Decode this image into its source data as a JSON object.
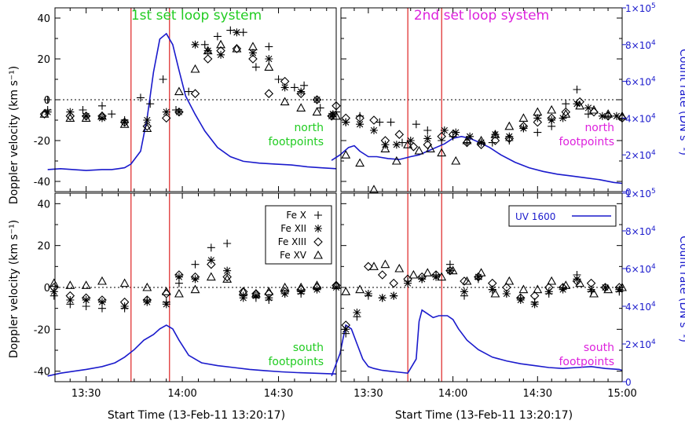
{
  "colors": {
    "axis": "#000000",
    "marker": "#000000",
    "uv_curve": "#1a1acc",
    "red_line": "#dd2222",
    "title_left": "#22cc22",
    "title_right": "#dd22dd"
  },
  "labels": {
    "ylabel_left": "Doppler velocity (km s⁻¹)",
    "ylabel_right": "Count rate (DN s⁻¹)",
    "xlabel": "Start Time (13-Feb-11 13:20:17)",
    "title_col1": "1st set loop system",
    "title_col2": "2nd set loop system",
    "north_1": "north",
    "north_2": "footpoints",
    "south_1": "south",
    "south_2": "footpoints"
  },
  "legend": {
    "fe10": "Fe X",
    "fe12": "Fe XII",
    "fe13": "Fe XIII",
    "fe15": "Fe XV",
    "uv": "UV 1600"
  },
  "chart_data": [
    {
      "type": "scatter",
      "panel": "top-left",
      "title": "1st set loop system",
      "label": "north footpoints",
      "xlim": [
        "13:20:17",
        "14:48"
      ],
      "ylim": [
        -45,
        45
      ],
      "ylim_right": [
        0,
        100000
      ],
      "red_lines": [
        "13:44",
        "13:56"
      ],
      "series": [
        {
          "name": "Fe X",
          "marker": "plus",
          "x": [
            13.3,
            13.3,
            13.483,
            13.583,
            13.633,
            13.7,
            13.783,
            13.833,
            13.9,
            13.967,
            14.033,
            14.117,
            14.183,
            14.25,
            14.317,
            14.383,
            14.45,
            14.5,
            14.583,
            14.633,
            14.717,
            14.8
          ],
          "y": [
            -5,
            0,
            -5,
            -3,
            -7,
            -10,
            1,
            -2,
            10,
            -5,
            4,
            27,
            31,
            34,
            33,
            16,
            26,
            10,
            6,
            7,
            -4,
            -6
          ]
        },
        {
          "name": "Fe XII",
          "marker": "asterisk",
          "x": [
            13.3,
            13.417,
            13.5,
            13.583,
            13.7,
            13.817,
            13.917,
            13.983,
            14.067,
            14.133,
            14.2,
            14.283,
            14.367,
            14.45,
            14.533,
            14.617,
            14.7,
            14.783
          ],
          "y": [
            -6,
            -6,
            -8,
            -9,
            -11,
            -10,
            -6,
            -6,
            27,
            24,
            22,
            33,
            23,
            20,
            6,
            4,
            0,
            -7
          ]
        },
        {
          "name": "Fe XIII",
          "marker": "diamond",
          "x": [
            13.283,
            13.417,
            13.5,
            13.583,
            13.7,
            13.817,
            13.917,
            13.983,
            14.067,
            14.133,
            14.2,
            14.283,
            14.367,
            14.45,
            14.533,
            14.617,
            14.7,
            14.8
          ],
          "y": [
            -7,
            -8,
            -8,
            -8,
            -11,
            -13,
            -9,
            -6,
            3,
            20,
            24,
            25,
            20,
            3,
            9,
            3,
            0,
            -3
          ]
        },
        {
          "name": "Fe XV",
          "marker": "triangle",
          "x": [
            13.283,
            13.417,
            13.5,
            13.583,
            13.7,
            13.817,
            13.983,
            14.067,
            14.133,
            14.2,
            14.283,
            14.367,
            14.45,
            14.533,
            14.617,
            14.7,
            14.8
          ],
          "y": [
            -7,
            -9,
            -9,
            -8,
            -12,
            -14,
            4,
            15,
            24,
            27,
            25,
            26,
            16,
            -1,
            -4,
            -6,
            -8
          ]
        }
      ],
      "uv": {
        "x": [
          13.3,
          13.367,
          13.433,
          13.5,
          13.583,
          13.633,
          13.667,
          13.7,
          13.733,
          13.783,
          13.817,
          13.85,
          13.883,
          13.917,
          13.95,
          13.983,
          14.017,
          14.067,
          14.117,
          14.183,
          14.25,
          14.317,
          14.4,
          14.483,
          14.567,
          14.65,
          14.717,
          14.8
        ],
        "y": [
          12000,
          12500,
          12000,
          11500,
          12000,
          12000,
          12500,
          13000,
          15000,
          22000,
          40000,
          65000,
          83000,
          86000,
          80000,
          66000,
          52000,
          42000,
          33000,
          24000,
          19000,
          16500,
          15500,
          15000,
          14500,
          13500,
          13000,
          12500
        ]
      }
    },
    {
      "type": "scatter",
      "panel": "top-right",
      "title": "2nd set loop system",
      "label": "north footpoints",
      "xlim": [
        "13:20:17",
        "15:00"
      ],
      "ylim": [
        -45,
        45
      ],
      "ylim_right": [
        0,
        100000
      ],
      "red_lines": [
        "13:44",
        "13:56"
      ],
      "series": [
        {
          "name": "Fe X",
          "marker": "plus",
          "x": [
            13.367,
            13.45,
            13.567,
            13.633,
            13.7,
            13.783,
            13.85,
            13.933,
            14.0,
            14.083,
            14.233,
            14.333,
            14.417,
            14.5,
            14.583,
            14.667,
            14.733,
            14.8,
            14.917,
            15.0
          ],
          "y": [
            -11,
            -8,
            -11,
            -11,
            -21,
            -12,
            -15,
            -20,
            -18,
            -21,
            -21,
            -20,
            -14,
            -16,
            -13,
            -2,
            5,
            -7,
            -8,
            -9
          ]
        },
        {
          "name": "Fe XII",
          "marker": "asterisk",
          "x": [
            13.283,
            13.367,
            13.45,
            13.533,
            13.6,
            13.667,
            13.75,
            13.85,
            13.95,
            14.017,
            14.1,
            14.167,
            14.25,
            14.333,
            14.417,
            14.5,
            14.583,
            14.65,
            14.733,
            14.8,
            14.883,
            14.967
          ],
          "y": [
            -8,
            -11,
            -12,
            -15,
            -22,
            -22,
            -20,
            -19,
            -15,
            -16,
            -18,
            -21,
            -17,
            -18,
            -14,
            -9,
            -10,
            -9,
            -2,
            -4,
            -8,
            -8
          ]
        },
        {
          "name": "Fe XIII",
          "marker": "diamond",
          "x": [
            13.283,
            13.367,
            13.45,
            13.533,
            13.6,
            13.683,
            13.767,
            13.85,
            13.933,
            14.0,
            14.083,
            14.167,
            14.25,
            14.333,
            14.417,
            14.5,
            14.583,
            14.667,
            14.75,
            14.833,
            14.917,
            15.0
          ],
          "y": [
            -8,
            -9,
            -9,
            -10,
            -20,
            -17,
            -23,
            -22,
            -18,
            -17,
            -21,
            -22,
            -20,
            -19,
            -13,
            -11,
            -9,
            -6,
            -1,
            -6,
            -8,
            -9
          ]
        },
        {
          "name": "Fe XV",
          "marker": "triangle",
          "x": [
            13.367,
            13.45,
            13.533,
            13.6,
            13.667,
            13.733,
            13.8,
            13.867,
            13.933,
            14.017,
            14.083,
            14.167,
            14.25,
            14.333,
            14.417,
            14.5,
            14.583,
            14.667,
            14.75,
            14.833,
            14.917,
            15.0
          ],
          "y": [
            -27,
            -31,
            -44,
            -24,
            -30,
            -22,
            -25,
            -24,
            -26,
            -30,
            -20,
            -20,
            -17,
            -13,
            -9,
            -6,
            -5,
            -7,
            -3,
            -5,
            -7,
            -8
          ]
        }
      ],
      "uv": {
        "x": [
          13.283,
          13.333,
          13.383,
          13.417,
          13.45,
          13.5,
          13.55,
          13.617,
          13.683,
          13.75,
          13.8,
          13.85,
          13.9,
          13.95,
          14.0,
          14.05,
          14.1,
          14.15,
          14.217,
          14.283,
          14.367,
          14.45,
          14.533,
          14.617,
          14.7,
          14.783,
          14.867,
          14.95,
          15.0
        ],
        "y": [
          17000,
          20000,
          24000,
          25000,
          22000,
          19000,
          19000,
          18000,
          17500,
          19000,
          20000,
          22000,
          24000,
          26000,
          29000,
          30000,
          29000,
          27000,
          24000,
          20000,
          16000,
          13000,
          11000,
          9500,
          8500,
          7500,
          6500,
          5000,
          4500
        ]
      }
    },
    {
      "type": "scatter",
      "panel": "bottom-left",
      "label": "south footpoints",
      "xlim": [
        "13:20:17",
        "14:48"
      ],
      "ylim": [
        -45,
        45
      ],
      "ylim_right": [
        0,
        100000
      ],
      "red_lines": [
        "13:44",
        "13:56"
      ],
      "series": [
        {
          "name": "Fe X",
          "marker": "plus",
          "x": [
            13.333,
            13.417,
            13.5,
            13.583,
            13.7,
            13.817,
            13.917,
            13.983,
            14.067,
            14.15,
            14.233,
            14.317,
            14.383,
            14.45,
            14.533,
            14.617,
            14.7,
            14.8
          ],
          "y": [
            -4,
            -8,
            -9,
            -10,
            -10,
            -6,
            -7,
            2,
            11,
            19,
            21,
            -4,
            -5,
            -6,
            -3,
            -3,
            -1,
            0
          ]
        },
        {
          "name": "Fe XII",
          "marker": "asterisk",
          "x": [
            13.333,
            13.417,
            13.5,
            13.583,
            13.7,
            13.817,
            13.917,
            13.983,
            14.067,
            14.15,
            14.233,
            14.317,
            14.383,
            14.45,
            14.533,
            14.617,
            14.7,
            14.8
          ],
          "y": [
            -2,
            -6,
            -6,
            -7,
            -9,
            -7,
            -8,
            5,
            4,
            13,
            8,
            -5,
            -4,
            -5,
            -3,
            -2,
            -1,
            0
          ]
        },
        {
          "name": "Fe XIII",
          "marker": "diamond",
          "x": [
            13.333,
            13.417,
            13.5,
            13.583,
            13.7,
            13.817,
            13.917,
            13.983,
            14.067,
            14.15,
            14.233,
            14.317,
            14.383,
            14.45,
            14.533,
            14.617,
            14.7,
            14.8
          ],
          "y": [
            0,
            -4,
            -5,
            -6,
            -7,
            -6,
            -3,
            6,
            5,
            11,
            5,
            -2,
            -3,
            -3,
            -2,
            -1,
            0,
            1
          ]
        },
        {
          "name": "Fe XV",
          "marker": "triangle",
          "x": [
            13.333,
            13.417,
            13.5,
            13.583,
            13.7,
            13.817,
            13.917,
            13.983,
            14.067,
            14.15,
            14.233,
            14.317,
            14.383,
            14.45,
            14.533,
            14.617,
            14.7,
            14.8
          ],
          "y": [
            2,
            1,
            1,
            3,
            2,
            0,
            -2,
            -3,
            -1,
            5,
            4,
            -2,
            -3,
            -2,
            0,
            0,
            1,
            1
          ]
        }
      ],
      "uv": {
        "x": [
          13.3,
          13.367,
          13.433,
          13.5,
          13.583,
          13.65,
          13.7,
          13.75,
          13.8,
          13.85,
          13.883,
          13.917,
          13.95,
          13.983,
          14.033,
          14.1,
          14.183,
          14.267,
          14.35,
          14.433,
          14.517,
          14.6,
          14.683,
          14.767,
          14.8
        ],
        "y": [
          3000,
          4500,
          5500,
          6500,
          8000,
          10000,
          13000,
          17000,
          22000,
          25000,
          28000,
          30000,
          28000,
          22000,
          14000,
          10000,
          8500,
          7500,
          6500,
          5800,
          5200,
          4800,
          4500,
          4200,
          4100
        ]
      }
    },
    {
      "type": "scatter",
      "panel": "bottom-right",
      "label": "south footpoints",
      "xlim": [
        "13:20:17",
        "15:00"
      ],
      "ylim": [
        -45,
        45
      ],
      "ylim_right": [
        0,
        100000
      ],
      "red_lines": [
        "13:44",
        "13:56"
      ],
      "series": [
        {
          "name": "Fe X",
          "marker": "plus",
          "x": [
            13.367,
            13.433,
            13.5,
            13.583,
            13.65,
            13.733,
            13.817,
            13.9,
            13.983,
            14.067,
            14.15,
            14.233,
            14.317,
            14.4,
            14.483,
            14.567,
            14.65,
            14.733,
            14.817,
            14.9,
            14.983
          ],
          "y": [
            -22,
            -14,
            -4,
            -5,
            -4,
            3,
            4,
            6,
            11,
            -4,
            4,
            -1,
            -3,
            -5,
            -7,
            -3,
            0,
            6,
            -2,
            0,
            -2
          ]
        },
        {
          "name": "Fe XII",
          "marker": "asterisk",
          "x": [
            13.367,
            13.433,
            13.5,
            13.583,
            13.65,
            13.733,
            13.817,
            13.9,
            13.983,
            14.067,
            14.15,
            14.233,
            14.317,
            14.4,
            14.483,
            14.567,
            14.65,
            14.733,
            14.817,
            14.9,
            14.983
          ],
          "y": [
            -20,
            -12,
            -3,
            -5,
            -4,
            2,
            4,
            5,
            8,
            -2,
            5,
            -1,
            -3,
            -6,
            -8,
            -2,
            -1,
            4,
            -1,
            0,
            -1
          ]
        },
        {
          "name": "Fe XIII",
          "marker": "diamond",
          "x": [
            13.367,
            13.5,
            13.583,
            13.65,
            13.733,
            13.817,
            13.9,
            13.983,
            14.067,
            14.15,
            14.233,
            14.317,
            14.4,
            14.483,
            14.567,
            14.65,
            14.733,
            14.817,
            14.9,
            14.983
          ],
          "y": [
            -18,
            10,
            6,
            2,
            4,
            5,
            6,
            8,
            3,
            5,
            2,
            0,
            -5,
            -4,
            0,
            0,
            3,
            2,
            0,
            0
          ]
        },
        {
          "name": "Fe XV",
          "marker": "triangle",
          "x": [
            13.367,
            13.45,
            13.533,
            13.6,
            13.683,
            13.767,
            13.85,
            13.933,
            14.0,
            14.083,
            14.167,
            14.25,
            14.333,
            14.417,
            14.5,
            14.583,
            14.667,
            14.75,
            14.833,
            14.917,
            15.0
          ],
          "y": [
            -2,
            -1,
            10,
            11,
            9,
            6,
            7,
            5,
            8,
            3,
            7,
            -3,
            3,
            -1,
            -1,
            3,
            1,
            2,
            -3,
            -1,
            0
          ]
        }
      ],
      "uv": {
        "x": [
          13.283,
          13.333,
          13.367,
          13.4,
          13.433,
          13.467,
          13.5,
          13.533,
          13.583,
          13.633,
          13.683,
          13.733,
          13.783,
          13.8,
          13.817,
          13.85,
          13.883,
          13.917,
          13.967,
          14.0,
          14.033,
          14.083,
          14.15,
          14.233,
          14.317,
          14.4,
          14.483,
          14.567,
          14.65,
          14.733,
          14.817,
          14.9,
          14.983,
          15.0
        ],
        "y": [
          3000,
          15000,
          30000,
          28000,
          20000,
          12000,
          8000,
          7000,
          6000,
          5500,
          5000,
          4500,
          12000,
          32000,
          38000,
          36000,
          34000,
          35000,
          35000,
          33000,
          28000,
          22000,
          17000,
          13000,
          11000,
          9500,
          8500,
          7500,
          7000,
          7500,
          8000,
          7000,
          6500,
          6000
        ]
      }
    }
  ]
}
